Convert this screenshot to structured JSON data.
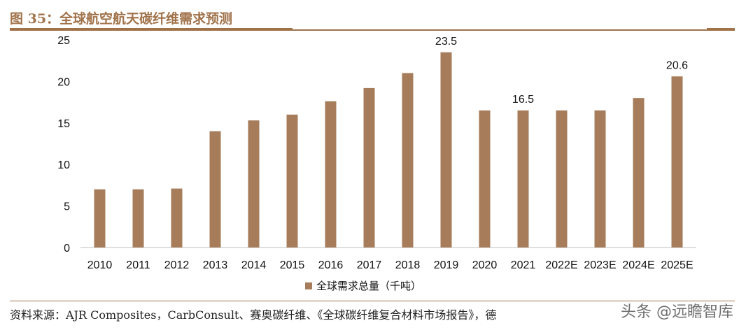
{
  "figure": {
    "title": "图 35：全球航空航天碳纤维需求预测",
    "source": "资料来源：AJR Composites，CarbConsult、赛奥碳纤维、《全球碳纤维复合材料市场报告》，德",
    "watermark": "头条 @远瞻智库"
  },
  "colors": {
    "bar": "#a67c5b",
    "accent": "#a0724a"
  },
  "chart_data": {
    "type": "bar",
    "categories": [
      "2010",
      "2011",
      "2012",
      "2013",
      "2014",
      "2015",
      "2016",
      "2017",
      "2018",
      "2019",
      "2020",
      "2021",
      "2022E",
      "2023E",
      "2024E",
      "2025E"
    ],
    "series": [
      {
        "name": "全球需求总量（千吨）",
        "values": [
          7.0,
          7.0,
          7.1,
          14.0,
          15.3,
          16.0,
          17.6,
          19.2,
          21.0,
          23.5,
          16.5,
          16.5,
          16.5,
          16.5,
          18.0,
          20.6
        ]
      }
    ],
    "data_labels": [
      {
        "category": "2019",
        "text": "23.5"
      },
      {
        "category": "2021",
        "text": "16.5"
      },
      {
        "category": "2025E",
        "text": "20.6"
      }
    ],
    "yticks": [
      "0",
      "5",
      "10",
      "15",
      "20",
      "25"
    ],
    "ylim": [
      0,
      25
    ],
    "legend_position": "bottom-center",
    "grid": false
  }
}
